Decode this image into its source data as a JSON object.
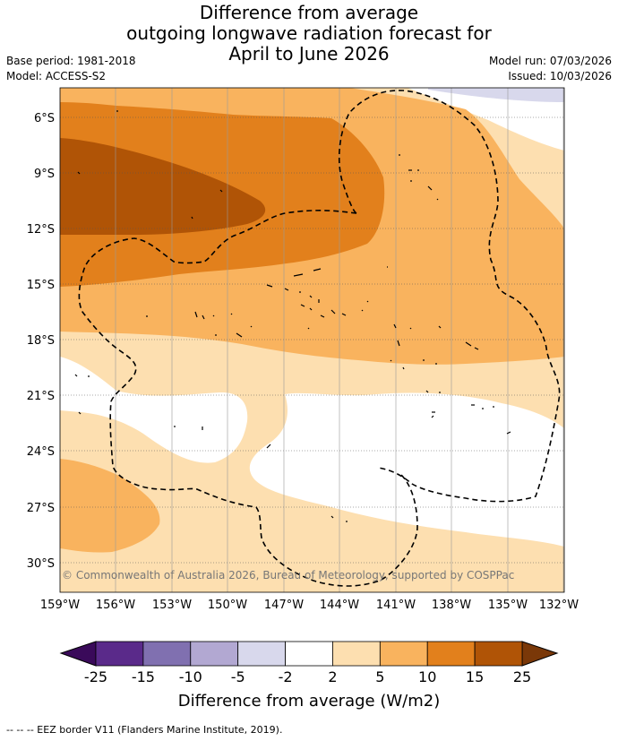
{
  "header": {
    "title_line1": "Difference from average",
    "title_line2": "outgoing longwave radiation forecast for",
    "title_line3": "April to June 2026",
    "base_period": "Base period: 1981-2018",
    "model": "Model: ACCESS-S2",
    "model_run": "Model run: 07/03/2026",
    "issued": "Issued: 10/03/2026"
  },
  "map": {
    "lat_labels": [
      "6°S",
      "9°S",
      "12°S",
      "15°S",
      "18°S",
      "21°S",
      "24°S",
      "27°S",
      "30°S"
    ],
    "lon_labels": [
      "159°W",
      "156°W",
      "153°W",
      "150°W",
      "147°W",
      "144°W",
      "141°W",
      "138°W",
      "135°W",
      "132°W"
    ],
    "copyright": "© Commonwealth of Australia 2026, Bureau of Meteorology, supported by COSPPac"
  },
  "colorbar": {
    "ticks": [
      "-25",
      "-15",
      "-10",
      "-5",
      "-2",
      "2",
      "5",
      "10",
      "15",
      "25"
    ],
    "colors": [
      "#5a2a8a",
      "#8070b0",
      "#b2a8d2",
      "#d8d8ec",
      "#ffffff",
      "#fddfb0",
      "#f9b35e",
      "#e2801c",
      "#b05406"
    ],
    "under_color": "#3a0a5a",
    "over_color": "#7a3808",
    "label": "Difference from average (W/m2)"
  },
  "legend": {
    "eez": "--  --  -- EEZ border V11 (Flanders Marine Institute, 2019)."
  }
}
